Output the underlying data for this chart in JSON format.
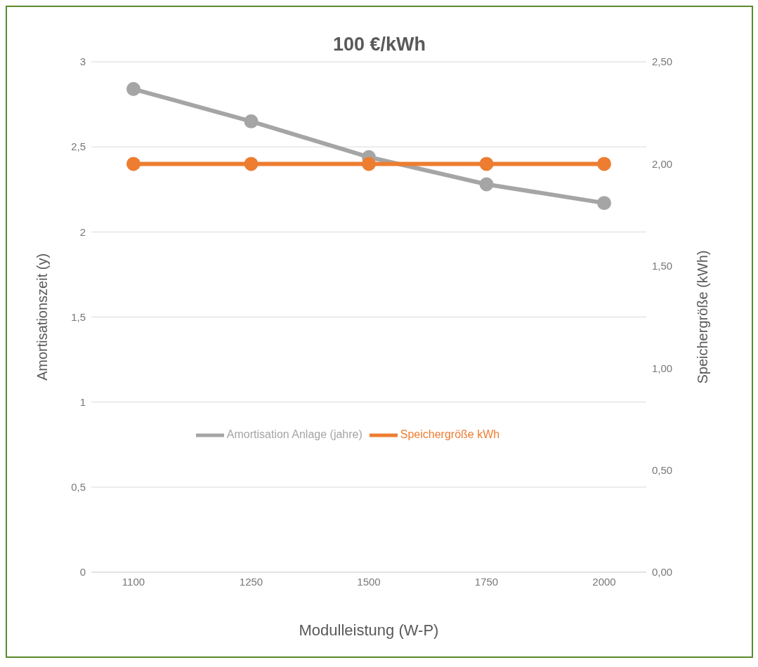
{
  "chart_data": {
    "type": "line",
    "title": "100 €/kWh",
    "xlabel": "Modulleistung (W-P)",
    "ylabel": "Amortisationszeit (y)",
    "y2label": "Speichergröße (kWh)",
    "categories": [
      "1100",
      "1250",
      "1500",
      "1750",
      "2000"
    ],
    "series": [
      {
        "name": "Amortisation Anlage (jahre)",
        "color": "#a5a5a5",
        "values": [
          2.84,
          2.65,
          2.44,
          2.28,
          2.17
        ]
      },
      {
        "name": "Speichergröße kWh",
        "color": "#ed7d31",
        "values": [
          2,
          2,
          2,
          2,
          2
        ],
        "axis": "y2"
      }
    ],
    "ylim": [
      0,
      3
    ],
    "yticks": [
      0,
      {
        "value": 0.5,
        "label": "0,5"
      },
      1,
      {
        "value": 1.5,
        "label": "1,5"
      },
      2,
      {
        "value": 2.5,
        "label": "2,5"
      },
      3
    ],
    "y2lim": [
      0,
      2.5
    ],
    "y2ticks": [
      {
        "value": 0,
        "label": "0,00"
      },
      {
        "value": 0.5,
        "label": "0,50"
      },
      {
        "value": 1,
        "label": "1,00"
      },
      {
        "value": 1.5,
        "label": "1,50"
      },
      {
        "value": 2,
        "label": "2,00"
      },
      {
        "value": 2.5,
        "label": "2,50"
      }
    ],
    "grid": "y",
    "legend": "center",
    "marker": "circle",
    "line_style": "solid"
  }
}
